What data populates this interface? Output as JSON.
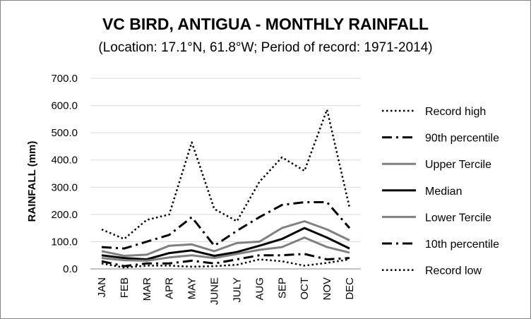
{
  "chart_data": {
    "type": "line",
    "title": "VC BIRD, ANTIGUA - MONTHLY RAINFALL",
    "subtitle": "(Location: 17.1°N, 61.8°W; Period of record: 1971-2014)",
    "xlabel": "",
    "ylabel": "RAINFALL (mm)",
    "ylim": [
      0,
      700
    ],
    "yticks": [
      "0.0",
      "100.0",
      "200.0",
      "300.0",
      "400.0",
      "500.0",
      "600.0",
      "700.0"
    ],
    "grid": true,
    "legend_position": "right",
    "categories": [
      "JAN",
      "FEB",
      "MAR",
      "APR",
      "MAY",
      "JUNE",
      "JULY",
      "AUG",
      "SEP",
      "OCT",
      "NOV",
      "DEC"
    ],
    "series": [
      {
        "name": "Record high",
        "color": "#000000",
        "style": "dotted",
        "values": [
          145,
          110,
          180,
          200,
          465,
          220,
          175,
          320,
          410,
          360,
          585,
          225
        ]
      },
      {
        "name": "90th percentile",
        "color": "#000000",
        "style": "dashdot",
        "values": [
          80,
          75,
          100,
          125,
          190,
          85,
          140,
          190,
          235,
          245,
          245,
          150
        ]
      },
      {
        "name": "Upper Tercile",
        "color": "#808080",
        "style": "solid",
        "values": [
          65,
          48,
          52,
          85,
          90,
          65,
          95,
          100,
          150,
          175,
          145,
          105
        ]
      },
      {
        "name": "Median",
        "color": "#000000",
        "style": "solid",
        "values": [
          50,
          40,
          35,
          58,
          68,
          48,
          62,
          85,
          110,
          150,
          115,
          75
        ]
      },
      {
        "name": "Lower Tercile",
        "color": "#808080",
        "style": "solid",
        "values": [
          40,
          32,
          30,
          42,
          50,
          40,
          55,
          70,
          80,
          115,
          80,
          60
        ]
      },
      {
        "name": "10th percentile",
        "color": "#000000",
        "style": "dashdot",
        "values": [
          28,
          10,
          20,
          20,
          30,
          20,
          35,
          50,
          50,
          55,
          35,
          40
        ]
      },
      {
        "name": "Record low",
        "color": "#000000",
        "style": "dotted",
        "values": [
          20,
          5,
          12,
          12,
          8,
          10,
          15,
          35,
          28,
          12,
          22,
          35
        ]
      }
    ]
  }
}
